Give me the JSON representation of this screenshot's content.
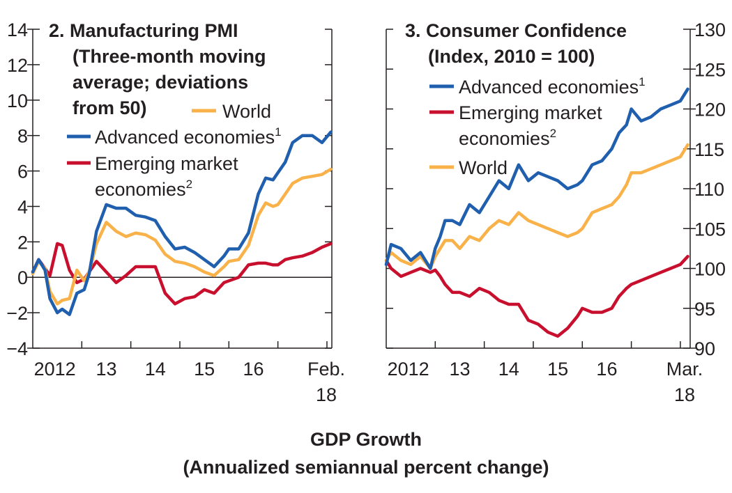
{
  "footer": {
    "line1": "GDP Growth",
    "line2": "(Annualized semiannual percent change)"
  },
  "colors": {
    "advanced": "#1f5fae",
    "emerging": "#c8102e",
    "world": "#f9b24a",
    "axis": "#231f20"
  },
  "chart_data": [
    {
      "type": "line",
      "title_lines": [
        "2. Manufacturing PMI",
        "(Three-month moving",
        "average; deviations",
        "from 50)"
      ],
      "ylim": [
        -4,
        14
      ],
      "y_ticks": [
        -4,
        -2,
        0,
        2,
        4,
        6,
        8,
        10,
        12,
        14
      ],
      "y_tick_labels": [
        "−4",
        "−2",
        "0",
        "2",
        "4",
        "6",
        "8",
        "10",
        "12",
        "14"
      ],
      "xlim": [
        2012.0,
        2018.1
      ],
      "x_tick_labels": [
        {
          "x": 2012.45,
          "label": "2012"
        },
        {
          "x": 2013.5,
          "label": "13"
        },
        {
          "x": 2014.5,
          "label": "14"
        },
        {
          "x": 2015.5,
          "label": "15"
        },
        {
          "x": 2016.5,
          "label": "16"
        },
        {
          "x": 2018.0,
          "label": "Feb.",
          "label2": "18"
        }
      ],
      "legend": [
        {
          "key": "world",
          "label": "World",
          "sup": ""
        },
        {
          "key": "advanced",
          "label": "Advanced economies",
          "sup": "1"
        },
        {
          "key": "emerging",
          "label": "Emerging market",
          "label2": "economies",
          "sup": "2"
        }
      ],
      "series": [
        {
          "key": "advanced",
          "name": "Advanced economies",
          "x": [
            2012.0,
            2012.12,
            2012.25,
            2012.35,
            2012.5,
            2012.6,
            2012.75,
            2012.9,
            2013.05,
            2013.15,
            2013.3,
            2013.5,
            2013.7,
            2013.9,
            2014.1,
            2014.3,
            2014.5,
            2014.7,
            2014.9,
            2015.1,
            2015.3,
            2015.5,
            2015.7,
            2015.9,
            2016.0,
            2016.2,
            2016.4,
            2016.6,
            2016.75,
            2016.9,
            2017.0,
            2017.15,
            2017.3,
            2017.5,
            2017.7,
            2017.9,
            2018.08
          ],
          "y": [
            0.3,
            1.0,
            0.4,
            -1.2,
            -2.0,
            -1.8,
            -2.1,
            -0.9,
            -0.7,
            0.2,
            2.6,
            4.1,
            3.9,
            3.9,
            3.5,
            3.4,
            3.2,
            2.3,
            1.6,
            1.7,
            1.4,
            1.0,
            0.6,
            1.2,
            1.6,
            1.6,
            2.5,
            4.7,
            5.6,
            5.5,
            5.9,
            6.5,
            7.6,
            8.0,
            8.0,
            7.6,
            8.2
          ]
        },
        {
          "key": "world",
          "name": "World",
          "x": [
            2012.0,
            2012.12,
            2012.25,
            2012.35,
            2012.5,
            2012.6,
            2012.75,
            2012.9,
            2013.05,
            2013.15,
            2013.3,
            2013.5,
            2013.7,
            2013.9,
            2014.1,
            2014.3,
            2014.5,
            2014.7,
            2014.9,
            2015.1,
            2015.3,
            2015.5,
            2015.7,
            2015.9,
            2016.0,
            2016.2,
            2016.4,
            2016.6,
            2016.75,
            2016.9,
            2017.0,
            2017.15,
            2017.3,
            2017.5,
            2017.7,
            2017.9,
            2018.08
          ],
          "y": [
            0.2,
            0.9,
            0.5,
            -0.8,
            -1.5,
            -1.3,
            -1.2,
            0.4,
            -0.2,
            0.3,
            1.9,
            3.1,
            2.6,
            2.3,
            2.5,
            2.4,
            2.1,
            1.3,
            0.9,
            0.8,
            0.6,
            0.3,
            0.1,
            0.6,
            0.9,
            1.0,
            1.8,
            3.5,
            4.2,
            4.0,
            4.1,
            4.7,
            5.3,
            5.6,
            5.7,
            5.8,
            6.1
          ]
        },
        {
          "key": "emerging",
          "name": "Emerging market economies",
          "x": [
            2012.0,
            2012.12,
            2012.25,
            2012.35,
            2012.5,
            2012.6,
            2012.75,
            2012.9,
            2013.05,
            2013.15,
            2013.3,
            2013.5,
            2013.7,
            2013.9,
            2014.1,
            2014.3,
            2014.5,
            2014.7,
            2014.9,
            2015.1,
            2015.3,
            2015.5,
            2015.7,
            2015.9,
            2016.0,
            2016.2,
            2016.4,
            2016.6,
            2016.75,
            2016.9,
            2017.0,
            2017.15,
            2017.3,
            2017.5,
            2017.7,
            2017.9,
            2018.08
          ],
          "y": [
            0.3,
            1.0,
            0.5,
            0.1,
            1.9,
            1.8,
            0.4,
            -0.3,
            -0.1,
            0.3,
            0.9,
            0.3,
            -0.3,
            0.1,
            0.6,
            0.6,
            0.6,
            -0.9,
            -1.5,
            -1.2,
            -1.1,
            -0.7,
            -0.9,
            -0.3,
            -0.2,
            0.0,
            0.7,
            0.8,
            0.8,
            0.7,
            0.7,
            1.0,
            1.1,
            1.2,
            1.4,
            1.7,
            1.9
          ]
        }
      ]
    },
    {
      "type": "line",
      "title_lines": [
        "3. Consumer Confidence",
        "(Index, 2010 = 100)"
      ],
      "ylim": [
        90,
        130
      ],
      "y_ticks": [
        90,
        95,
        100,
        105,
        110,
        115,
        120,
        125,
        130
      ],
      "y_tick_labels": [
        "90",
        "95",
        "100",
        "105",
        "110",
        "115",
        "120",
        "125",
        "130"
      ],
      "xlim": [
        2012.0,
        2018.2
      ],
      "x_tick_labels": [
        {
          "x": 2012.45,
          "label": "2012"
        },
        {
          "x": 2013.5,
          "label": "13"
        },
        {
          "x": 2014.5,
          "label": "14"
        },
        {
          "x": 2015.5,
          "label": "15"
        },
        {
          "x": 2016.5,
          "label": "16"
        },
        {
          "x": 2018.1,
          "label": "Mar.",
          "label2": "18"
        }
      ],
      "legend": [
        {
          "key": "advanced",
          "label": "Advanced economies",
          "sup": "1"
        },
        {
          "key": "emerging",
          "label": "Emerging market",
          "label2": "economies",
          "sup": "2"
        },
        {
          "key": "world",
          "label": "World",
          "sup": ""
        }
      ],
      "series": [
        {
          "key": "advanced",
          "name": "Advanced economies",
          "x": [
            2012.0,
            2012.1,
            2012.3,
            2012.5,
            2012.7,
            2012.9,
            2013.0,
            2013.1,
            2013.2,
            2013.35,
            2013.5,
            2013.7,
            2013.9,
            2014.1,
            2014.3,
            2014.5,
            2014.7,
            2014.9,
            2015.1,
            2015.3,
            2015.5,
            2015.7,
            2015.9,
            2016.0,
            2016.2,
            2016.4,
            2016.6,
            2016.75,
            2016.9,
            2017.0,
            2017.2,
            2017.4,
            2017.6,
            2017.8,
            2018.0,
            2018.15
          ],
          "y": [
            100.5,
            103,
            102.5,
            101,
            102,
            100,
            102.5,
            104,
            106,
            106,
            105.5,
            108,
            107,
            109,
            111,
            110,
            113,
            111,
            112,
            111.5,
            111,
            110,
            110.5,
            111,
            113,
            113.5,
            115,
            117,
            118,
            120,
            118.5,
            119,
            120,
            120.5,
            121,
            122.5
          ]
        },
        {
          "key": "world",
          "name": "World",
          "x": [
            2012.0,
            2012.1,
            2012.3,
            2012.5,
            2012.7,
            2012.9,
            2013.0,
            2013.1,
            2013.2,
            2013.35,
            2013.5,
            2013.7,
            2013.9,
            2014.1,
            2014.3,
            2014.5,
            2014.7,
            2014.9,
            2015.1,
            2015.3,
            2015.5,
            2015.7,
            2015.9,
            2016.0,
            2016.2,
            2016.4,
            2016.6,
            2016.75,
            2016.9,
            2017.0,
            2017.2,
            2017.4,
            2017.6,
            2017.8,
            2018.0,
            2018.15
          ],
          "y": [
            101,
            102,
            101,
            100.5,
            101.5,
            100,
            101.5,
            102.5,
            103.5,
            103.5,
            102.5,
            104,
            103.5,
            105,
            106,
            105.5,
            107,
            106,
            105.5,
            105,
            104.5,
            104,
            104.5,
            105,
            107,
            107.5,
            108,
            109,
            110.5,
            112,
            112,
            112.5,
            113,
            113.5,
            114,
            115.5
          ]
        },
        {
          "key": "emerging",
          "name": "Emerging market economies",
          "x": [
            2012.0,
            2012.1,
            2012.3,
            2012.5,
            2012.7,
            2012.9,
            2013.0,
            2013.1,
            2013.2,
            2013.35,
            2013.5,
            2013.7,
            2013.9,
            2014.1,
            2014.3,
            2014.5,
            2014.7,
            2014.9,
            2015.1,
            2015.3,
            2015.5,
            2015.7,
            2015.9,
            2016.0,
            2016.2,
            2016.4,
            2016.6,
            2016.75,
            2016.9,
            2017.0,
            2017.2,
            2017.4,
            2017.6,
            2017.8,
            2018.0,
            2018.15
          ],
          "y": [
            101,
            100,
            99,
            99.5,
            100,
            99.5,
            99.8,
            99,
            98,
            97,
            97,
            96.5,
            97.5,
            97,
            96,
            95.5,
            95.5,
            93.5,
            93,
            92,
            91.5,
            92.5,
            94,
            95,
            94.5,
            94.5,
            95,
            96.5,
            97.5,
            98,
            98.5,
            99,
            99.5,
            100,
            100.5,
            101.5
          ]
        }
      ]
    }
  ]
}
